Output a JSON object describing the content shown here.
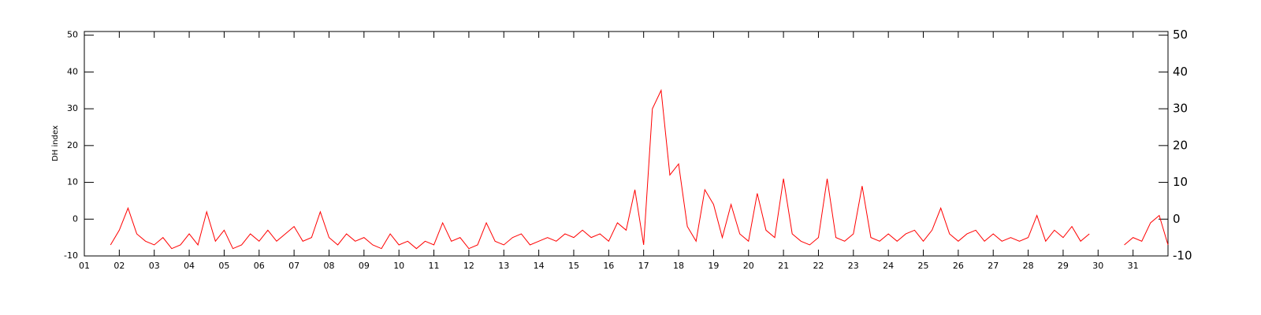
{
  "chart_data": {
    "type": "line",
    "y_label": "DH index",
    "xlim": [
      1,
      32
    ],
    "ylim": [
      -10,
      51
    ],
    "xticks": [
      {
        "value": 1,
        "label": "01"
      },
      {
        "value": 2,
        "label": "02"
      },
      {
        "value": 3,
        "label": "03"
      },
      {
        "value": 4,
        "label": "04"
      },
      {
        "value": 5,
        "label": "05"
      },
      {
        "value": 6,
        "label": "06"
      },
      {
        "value": 7,
        "label": "07"
      },
      {
        "value": 8,
        "label": "08"
      },
      {
        "value": 9,
        "label": "09"
      },
      10,
      11,
      12,
      13,
      14,
      15,
      16,
      17,
      18,
      19,
      20,
      21,
      22,
      23,
      24,
      25,
      26,
      27,
      28,
      29,
      30,
      31
    ],
    "yticks": [
      -10,
      0,
      10,
      20,
      30,
      40,
      50
    ],
    "x": [
      1.75,
      2,
      2.25,
      2.5,
      2.75,
      3,
      3.25,
      3.5,
      3.75,
      4,
      4.25,
      4.5,
      4.75,
      5,
      5.25,
      5.5,
      5.75,
      6,
      6.25,
      6.5,
      6.75,
      7,
      7.25,
      7.5,
      7.75,
      8,
      8.25,
      8.5,
      8.75,
      9,
      9.25,
      9.5,
      9.75,
      10,
      10.25,
      10.5,
      10.75,
      11,
      11.25,
      11.5,
      11.75,
      12,
      12.25,
      12.5,
      12.75,
      13,
      13.25,
      13.5,
      13.75,
      14,
      14.25,
      14.5,
      14.75,
      15,
      15.25,
      15.5,
      15.75,
      16,
      16.25,
      16.5,
      16.75,
      17,
      17.25,
      17.5,
      17.75,
      18,
      18.25,
      18.5,
      18.75,
      19,
      19.25,
      19.5,
      19.75,
      20,
      20.25,
      20.5,
      20.75,
      21,
      21.25,
      21.5,
      21.75,
      22,
      22.25,
      22.5,
      22.75,
      23,
      23.25,
      23.5,
      23.75,
      24,
      24.25,
      24.5,
      24.75,
      25,
      25.25,
      25.5,
      25.75,
      26,
      26.25,
      26.5,
      26.75,
      27,
      27.25,
      27.5,
      27.75,
      28,
      28.25,
      28.5,
      28.75,
      29,
      29.25,
      29.5,
      29.75,
      30,
      30.25,
      30.5,
      30.75,
      31,
      31.25,
      31.5,
      31.75,
      32
    ],
    "series": [
      {
        "color": "#ff0000",
        "values": [
          -7,
          -3,
          3,
          -4,
          -6,
          -7,
          -5,
          -8,
          -7,
          -4,
          -7,
          2,
          -6,
          -3,
          -8,
          -7,
          -4,
          -6,
          -3,
          -6,
          -4,
          -2,
          -6,
          -5,
          2,
          -5,
          -7,
          -4,
          -6,
          -5,
          -7,
          -8,
          -4,
          -7,
          -6,
          -8,
          -6,
          -7,
          -1,
          -6,
          -5,
          -8,
          -7,
          -1,
          -6,
          -7,
          -5,
          -4,
          -7,
          -6,
          -5,
          -6,
          -4,
          -5,
          -3,
          -5,
          -4,
          -6,
          -1,
          -3,
          8,
          -7,
          30,
          35,
          12,
          15,
          -2,
          -6,
          8,
          4,
          -5,
          4,
          -4,
          -6,
          7,
          -3,
          -5,
          11,
          -4,
          -6,
          -7,
          -5,
          11,
          -5,
          -6,
          -4,
          9,
          -5,
          -6,
          -4,
          -6,
          -4,
          -3,
          -6,
          -3,
          3,
          -4,
          -6,
          -4,
          -3,
          -6,
          -4,
          -6,
          -5,
          -6,
          -5,
          1,
          -6,
          -3,
          -5,
          -2,
          -6,
          -4,
          null,
          null,
          null,
          -7,
          -5,
          -6,
          -1,
          1,
          -7
        ]
      }
    ]
  }
}
